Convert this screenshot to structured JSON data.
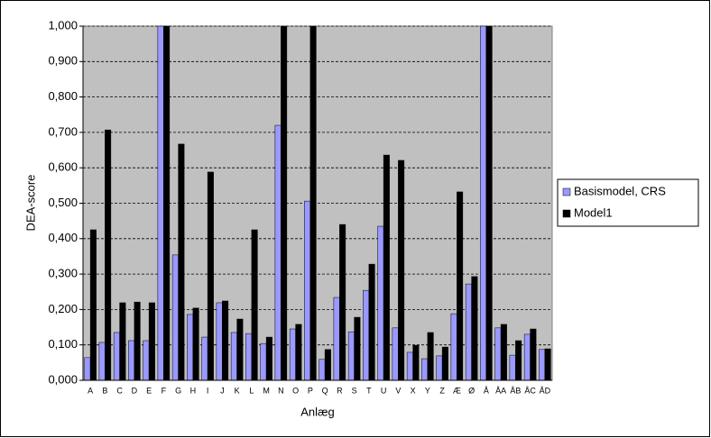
{
  "chart_data": {
    "type": "bar",
    "y_label": "DEA-score",
    "x_label": "Anlæg",
    "categories": [
      "A",
      "B",
      "C",
      "D",
      "E",
      "F",
      "G",
      "H",
      "I",
      "J",
      "K",
      "L",
      "M",
      "N",
      "O",
      "P",
      "Q",
      "R",
      "S",
      "T",
      "U",
      "V",
      "X",
      "Y",
      "Z",
      "Æ",
      "Ø",
      "Å",
      "ÅA",
      "ÅB",
      "ÅC",
      "ÅD"
    ],
    "series": [
      {
        "name": "Basismodel, CRS",
        "color": "#9999ff",
        "values": [
          0.064,
          0.107,
          0.135,
          0.112,
          0.112,
          1.0,
          0.354,
          0.186,
          0.122,
          0.219,
          0.135,
          0.132,
          0.104,
          0.72,
          0.145,
          0.506,
          0.059,
          0.234,
          0.137,
          0.254,
          0.435,
          0.148,
          0.079,
          0.061,
          0.069,
          0.188,
          0.272,
          1.0,
          0.148,
          0.071,
          0.13,
          0.087
        ]
      },
      {
        "name": "Model1",
        "color": "#000000",
        "values": [
          0.425,
          0.707,
          0.219,
          0.221,
          0.219,
          1.0,
          0.667,
          0.204,
          0.588,
          0.224,
          0.173,
          0.425,
          0.122,
          1.0,
          0.158,
          1.0,
          0.087,
          0.44,
          0.178,
          0.328,
          0.636,
          0.621,
          0.099,
          0.135,
          0.094,
          0.532,
          0.293,
          1.0,
          0.158,
          0.112,
          0.145,
          0.089
        ]
      }
    ],
    "ylim": [
      0,
      1
    ],
    "yticks": [
      {
        "value": 0,
        "label": "0,000"
      },
      {
        "value": 0.1,
        "label": "0,100"
      },
      {
        "value": 0.2,
        "label": "0,200"
      },
      {
        "value": 0.3,
        "label": "0,300"
      },
      {
        "value": 0.4,
        "label": "0,400"
      },
      {
        "value": 0.5,
        "label": "0,500"
      },
      {
        "value": 0.6,
        "label": "0,600"
      },
      {
        "value": 0.7,
        "label": "0,700"
      },
      {
        "value": 0.8,
        "label": "0,800"
      },
      {
        "value": 0.9,
        "label": "0,900"
      },
      {
        "value": 1,
        "label": "1,000"
      }
    ],
    "grid": true,
    "legend": "right",
    "plot_background": "#c0c0c0"
  }
}
